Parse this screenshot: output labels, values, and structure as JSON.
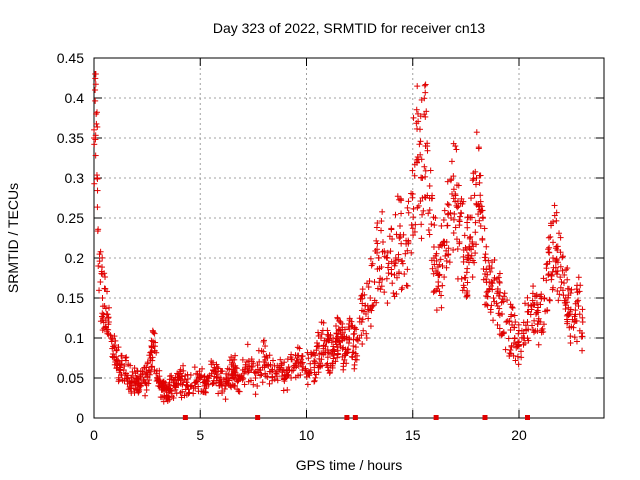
{
  "chart_data": {
    "type": "scatter",
    "title": "Day 323 of 2022, SRMTID for receiver cn13",
    "xlabel": "GPS time / hours",
    "ylabel": "SRMTID / TECUs",
    "xlim": [
      0,
      24
    ],
    "ylim": [
      0,
      0.45
    ],
    "x_ticks": [
      0,
      5,
      10,
      15,
      20
    ],
    "x_tick_labels": [
      "0",
      "5",
      "10",
      "15",
      "20"
    ],
    "y_ticks": [
      0,
      0.05,
      0.1,
      0.15,
      0.2,
      0.25,
      0.3,
      0.35,
      0.4,
      0.45
    ],
    "y_tick_labels": [
      "0",
      "0.05",
      "0.1",
      "0.15",
      "0.2",
      "0.25",
      "0.3",
      "0.35",
      "0.4",
      "0.45"
    ],
    "grid": true,
    "marker": "plus",
    "color": "#e00000",
    "gap_marker_hours": [
      4.3,
      7.7,
      11.9,
      12.3,
      16.1,
      18.4,
      20.4
    ],
    "series": [
      {
        "name": "SRMTID",
        "x": [
          0.0,
          0.05,
          0.1,
          0.15,
          0.2,
          0.3,
          0.4,
          0.5,
          0.6,
          0.7,
          0.8,
          0.9,
          1.0,
          1.2,
          1.4,
          1.6,
          1.8,
          2.0,
          2.2,
          2.4,
          2.6,
          2.8,
          3.0,
          3.2,
          3.4,
          3.6,
          3.8,
          4.0,
          4.2,
          4.4,
          4.6,
          4.8,
          5.0,
          5.2,
          5.4,
          5.6,
          5.8,
          6.0,
          6.2,
          6.4,
          6.6,
          6.8,
          7.0,
          7.2,
          7.4,
          7.6,
          7.8,
          8.0,
          8.2,
          8.4,
          8.6,
          8.8,
          9.0,
          9.2,
          9.4,
          9.6,
          9.8,
          10.0,
          10.2,
          10.4,
          10.6,
          10.8,
          11.0,
          11.2,
          11.4,
          11.6,
          11.8,
          12.0,
          12.2,
          12.4,
          12.6,
          12.8,
          13.0,
          13.2,
          13.4,
          13.6,
          13.8,
          14.0,
          14.2,
          14.4,
          14.6,
          14.8,
          15.0,
          15.2,
          15.4,
          15.6,
          15.8,
          16.0,
          16.2,
          16.4,
          16.6,
          16.8,
          17.0,
          17.2,
          17.4,
          17.6,
          17.8,
          18.0,
          18.2,
          18.4,
          18.6,
          18.8,
          19.0,
          19.2,
          19.4,
          19.6,
          19.8,
          20.0,
          20.2,
          20.4,
          20.6,
          20.8,
          21.0,
          21.2,
          21.4,
          21.6,
          21.8,
          22.0,
          22.2,
          22.4,
          22.6,
          22.8,
          23.0
        ],
        "y": [
          0.35,
          0.41,
          0.38,
          0.3,
          0.19,
          0.17,
          0.15,
          0.14,
          0.13,
          0.12,
          0.1,
          0.08,
          0.07,
          0.06,
          0.06,
          0.05,
          0.045,
          0.05,
          0.04,
          0.045,
          0.06,
          0.09,
          0.05,
          0.04,
          0.035,
          0.035,
          0.04,
          0.05,
          0.045,
          0.04,
          0.04,
          0.045,
          0.05,
          0.04,
          0.05,
          0.06,
          0.05,
          0.045,
          0.04,
          0.05,
          0.06,
          0.05,
          0.06,
          0.07,
          0.06,
          0.05,
          0.06,
          0.07,
          0.065,
          0.06,
          0.055,
          0.06,
          0.05,
          0.06,
          0.065,
          0.07,
          0.06,
          0.055,
          0.06,
          0.07,
          0.08,
          0.09,
          0.085,
          0.08,
          0.1,
          0.09,
          0.08,
          0.1,
          0.09,
          0.1,
          0.12,
          0.13,
          0.15,
          0.17,
          0.2,
          0.22,
          0.2,
          0.18,
          0.2,
          0.24,
          0.18,
          0.22,
          0.28,
          0.32,
          0.3,
          0.34,
          0.26,
          0.2,
          0.17,
          0.19,
          0.22,
          0.25,
          0.28,
          0.22,
          0.21,
          0.2,
          0.22,
          0.3,
          0.24,
          0.18,
          0.17,
          0.15,
          0.14,
          0.13,
          0.12,
          0.11,
          0.1,
          0.09,
          0.1,
          0.12,
          0.14,
          0.13,
          0.12,
          0.15,
          0.18,
          0.2,
          0.21,
          0.17,
          0.15,
          0.13,
          0.12,
          0.14,
          0.12
        ]
      }
    ]
  }
}
